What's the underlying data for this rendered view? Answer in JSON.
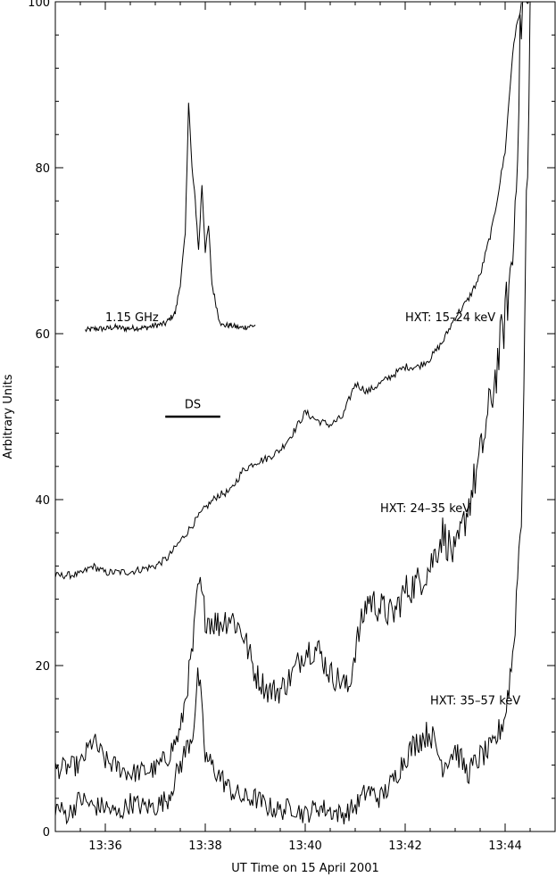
{
  "chart_data": {
    "type": "line",
    "xlabel": "UT Time on 15 April 2001",
    "ylabel": "Arbitrary Units",
    "xlim": [
      "13:35:00",
      "13:45:00"
    ],
    "ylim": [
      0,
      100
    ],
    "x_ticks": [
      "13:36",
      "13:38",
      "13:40",
      "13:42",
      "13:44"
    ],
    "y_ticks": [
      "0",
      "20",
      "40",
      "60",
      "80",
      "100"
    ],
    "grid": false,
    "series": [
      {
        "name": "1.15 GHz",
        "x": [
          "13:35:36",
          "13:35:48",
          "13:36:00",
          "13:36:12",
          "13:36:24",
          "13:36:36",
          "13:36:48",
          "13:37:00",
          "13:37:12",
          "13:37:24",
          "13:37:30",
          "13:37:36",
          "13:37:40",
          "13:37:44",
          "13:37:48",
          "13:37:52",
          "13:37:56",
          "13:38:00",
          "13:38:04",
          "13:38:08",
          "13:38:12",
          "13:38:16",
          "13:38:20",
          "13:38:30",
          "13:38:42",
          "13:38:54",
          "13:39:00"
        ],
        "values": [
          60.4,
          60.6,
          60.6,
          60.8,
          60.6,
          60.7,
          60.7,
          61,
          61.2,
          62.5,
          66,
          72,
          88,
          80,
          76,
          70,
          78,
          70,
          73,
          66,
          64,
          62,
          61,
          61,
          60.7,
          60.9,
          61
        ]
      },
      {
        "name": "HXT: 15-24 keV",
        "x": [
          "13:35:00",
          "13:35:30",
          "13:35:45",
          "13:36:00",
          "13:36:30",
          "13:37:00",
          "13:37:15",
          "13:37:30",
          "13:37:45",
          "13:38:00",
          "13:38:15",
          "13:38:30",
          "13:38:45",
          "13:39:00",
          "13:39:15",
          "13:39:30",
          "13:39:45",
          "13:40:00",
          "13:40:15",
          "13:40:30",
          "13:40:45",
          "13:41:00",
          "13:41:15",
          "13:41:30",
          "13:41:45",
          "13:42:00",
          "13:42:15",
          "13:42:30",
          "13:42:45",
          "13:43:00",
          "13:43:15",
          "13:43:30",
          "13:43:45",
          "13:44:00",
          "13:44:10",
          "13:44:20"
        ],
        "values": [
          30.8,
          31,
          32,
          31.2,
          31.3,
          32,
          33,
          35,
          37,
          39,
          40.5,
          41,
          43.5,
          44.5,
          45,
          46,
          48,
          50.5,
          49.5,
          49,
          50,
          54,
          53,
          54,
          55,
          56,
          56,
          57,
          59,
          62,
          64,
          67,
          73,
          82,
          95,
          100
        ]
      },
      {
        "name": "HXT: 24-35 keV",
        "x": [
          "13:35:00",
          "13:35:30",
          "13:35:45",
          "13:36:00",
          "13:36:30",
          "13:37:00",
          "13:37:15",
          "13:37:30",
          "13:37:45",
          "13:37:52",
          "13:38:00",
          "13:38:15",
          "13:38:30",
          "13:38:45",
          "13:39:00",
          "13:39:15",
          "13:39:30",
          "13:39:45",
          "13:40:00",
          "13:40:15",
          "13:40:30",
          "13:40:45",
          "13:40:52",
          "13:41:00",
          "13:41:15",
          "13:41:30",
          "13:41:45",
          "13:42:00",
          "13:42:15",
          "13:42:30",
          "13:42:45",
          "13:43:00",
          "13:43:15",
          "13:43:30",
          "13:43:45",
          "13:44:00",
          "13:44:10",
          "13:44:20",
          "13:44:30"
        ],
        "values": [
          7.5,
          8,
          11,
          8.5,
          7,
          7.5,
          9,
          12,
          22,
          30,
          26,
          25,
          26,
          24,
          19,
          17,
          17,
          19,
          22,
          22,
          19,
          18,
          17,
          22,
          28,
          27,
          26,
          29,
          30,
          32,
          36,
          33,
          39,
          45,
          53,
          62,
          70,
          100,
          100
        ]
      },
      {
        "name": "HXT: 35-57 keV",
        "x": [
          "13:35:00",
          "13:35:15",
          "13:35:30",
          "13:35:45",
          "13:36:00",
          "13:36:15",
          "13:36:30",
          "13:36:45",
          "13:37:00",
          "13:37:15",
          "13:37:30",
          "13:37:45",
          "13:37:52",
          "13:38:00",
          "13:38:15",
          "13:38:30",
          "13:38:45",
          "13:39:00",
          "13:39:15",
          "13:39:30",
          "13:39:45",
          "13:40:00",
          "13:40:15",
          "13:40:30",
          "13:40:45",
          "13:41:00",
          "13:41:15",
          "13:41:30",
          "13:41:45",
          "13:42:00",
          "13:42:15",
          "13:42:30",
          "13:42:45",
          "13:43:00",
          "13:43:15",
          "13:43:30",
          "13:43:45",
          "13:44:00",
          "13:44:10",
          "13:44:20",
          "13:44:30"
        ],
        "values": [
          3,
          2,
          4,
          3,
          3,
          2,
          3.5,
          3,
          3,
          4,
          8,
          12,
          19,
          9,
          7,
          5,
          4,
          4,
          3,
          2.5,
          3,
          2,
          3,
          2.5,
          2,
          3,
          5,
          4,
          6,
          9,
          11,
          12,
          8,
          10,
          7,
          9,
          10,
          14,
          22,
          40,
          100
        ]
      }
    ],
    "annotations": [
      {
        "text": "1.15 GHz",
        "x": "13:36:00",
        "y": 61.5
      },
      {
        "text": "HXT: 15–24 keV",
        "x": "13:42:00",
        "y": 61.5
      },
      {
        "text": "HXT: 24–35 keV",
        "x": "13:41:30",
        "y": 38.5
      },
      {
        "text": "HXT: 35–57 keV",
        "x": "13:42:30",
        "y": 15.3
      },
      {
        "text": "DS",
        "x": "13:37:45",
        "y": 51.0
      }
    ],
    "ds_bar": {
      "x_start": "13:37:12",
      "x_end": "13:38:18",
      "y": 50
    }
  }
}
